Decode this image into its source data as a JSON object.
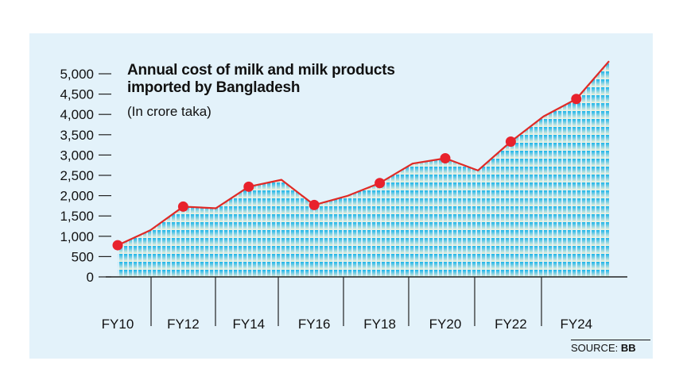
{
  "chart_data": {
    "type": "area",
    "title": "Annual cost of milk and milk products imported by Bangladesh",
    "title_lines": [
      "Annual cost of milk and milk products",
      "imported by Bangladesh"
    ],
    "subtitle": "(In crore taka)",
    "ylim": [
      0,
      5000
    ],
    "y_ticks": [
      "5,000",
      "4,500",
      "4,000",
      "3,500",
      "3,000",
      "2,500",
      "2,000",
      "1,500",
      "1,000",
      "500",
      "0"
    ],
    "y_tick_values": [
      5000,
      4500,
      4000,
      3500,
      3000,
      2500,
      2000,
      1500,
      1000,
      500,
      0
    ],
    "x_tick_labels": [
      "FY10",
      "FY12",
      "FY14",
      "FY16",
      "FY18",
      "FY20",
      "FY22",
      "FY24"
    ],
    "categories": [
      "FY10",
      "FY11",
      "FY12",
      "FY13",
      "FY14",
      "FY15",
      "FY16",
      "FY17",
      "FY18",
      "FY19",
      "FY20",
      "FY21",
      "FY22",
      "FY23",
      "FY24",
      "FY25"
    ],
    "values": [
      780,
      1150,
      1730,
      1690,
      2220,
      2390,
      1770,
      1990,
      2310,
      2790,
      2920,
      2620,
      3330,
      3950,
      4380,
      5310
    ],
    "marked_points": [
      "FY10",
      "FY12",
      "FY14",
      "FY16",
      "FY18",
      "FY20",
      "FY22",
      "FY24"
    ],
    "grid": false,
    "colors": {
      "line": "#e02a26",
      "marker": "#e8222c",
      "fill_top": "#18b4ec",
      "fill_bottom": "#f8f4d8",
      "background": "#e3f2fa"
    }
  },
  "source": {
    "label": "SOURCE:",
    "value": "BB"
  }
}
